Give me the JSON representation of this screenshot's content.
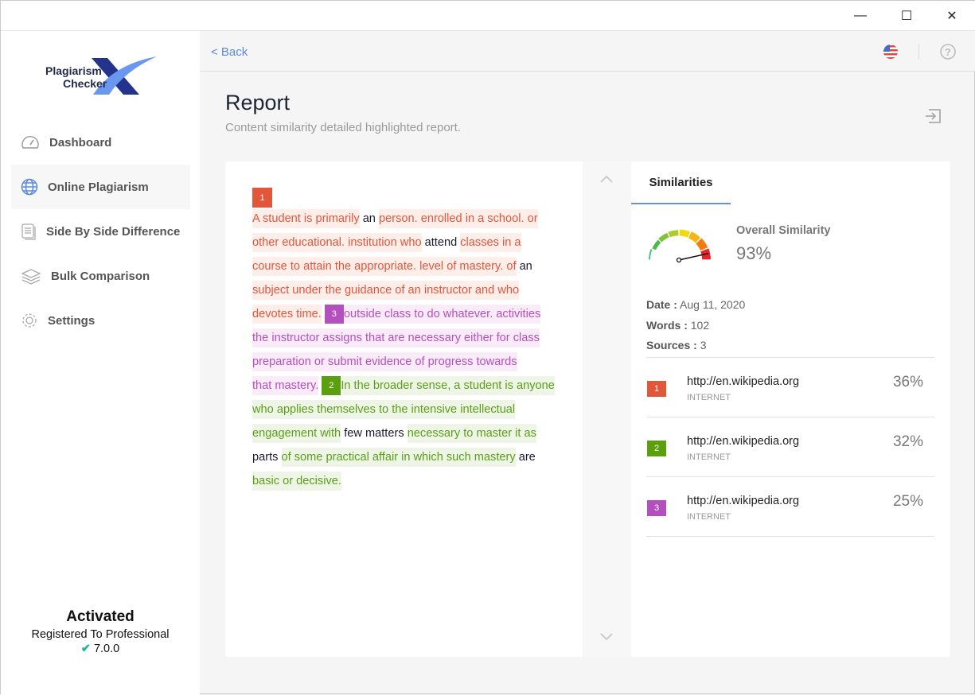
{
  "window": {
    "minimize": "—",
    "maximize": "☐",
    "close": "✕"
  },
  "logo": {
    "line1": "Plagiarism",
    "line2": "Checker"
  },
  "sidebar": {
    "items": [
      {
        "label": "Dashboard",
        "icon": "gauge-icon"
      },
      {
        "label": "Online Plagiarism",
        "icon": "globe-icon",
        "active": true
      },
      {
        "label": "Side By Side Difference",
        "icon": "document-icon"
      },
      {
        "label": "Bulk Comparison",
        "icon": "layers-icon"
      },
      {
        "label": "Settings",
        "icon": "gear-icon"
      }
    ]
  },
  "activation": {
    "status": "Activated",
    "registered": "Registered To Professional",
    "version": "7.0.0"
  },
  "header": {
    "back": "< Back"
  },
  "page": {
    "title": "Report",
    "subtitle": "Content similarity detailed highlighted report."
  },
  "colors": {
    "1": "#e2563a",
    "2": "#5b9e0e",
    "3": "#b44fbe"
  },
  "text": {
    "badges": {
      "first": "1",
      "second": "3",
      "third": "2"
    },
    "lines": [
      [
        [
          "1",
          "A student is primarily"
        ],
        [
          "n",
          " an "
        ],
        [
          "1",
          "person. enrolled in a school. or"
        ]
      ],
      [
        [
          "1",
          "other educational. institution who"
        ],
        [
          "n",
          " attend "
        ],
        [
          "1",
          "classes in a"
        ]
      ],
      [
        [
          "1",
          "course to attain the appropriate. level of mastery. of"
        ],
        [
          "n",
          " an"
        ]
      ],
      [
        [
          "1",
          "subject under the guidance of an instructor and who"
        ]
      ],
      [
        [
          "1",
          "devotes time."
        ],
        [
          "n",
          " "
        ],
        [
          "3",
          "outside class to do whatever. activities"
        ]
      ],
      [
        [
          "3",
          "the instructor assigns that are necessary either for class"
        ]
      ],
      [
        [
          "3",
          "preparation or submit evidence of progress towards"
        ]
      ],
      [
        [
          "3",
          "that mastery."
        ],
        [
          "n",
          " "
        ],
        [
          "2",
          "In the broader sense, a student is anyone"
        ]
      ],
      [
        [
          "2",
          "who applies themselves to the intensive intellectual"
        ]
      ],
      [
        [
          "2",
          "engagement with"
        ],
        [
          "n",
          " few matters "
        ],
        [
          "2",
          "necessary to master it as"
        ]
      ],
      [
        [
          "n",
          "parts "
        ],
        [
          "2",
          "of some practical affair in which such mastery"
        ],
        [
          "n",
          " are"
        ]
      ],
      [
        [
          "2",
          "basic or decisive."
        ]
      ]
    ]
  },
  "similarities": {
    "tab": "Similarities",
    "overall_label": "Overall Similarity",
    "overall_value": "93%",
    "gauge_percent": 93,
    "date_label": "Date :",
    "date": "Aug 11, 2020",
    "words_label": "Words :",
    "words": "102",
    "sources_label": "Sources :",
    "sources": "3",
    "items": [
      {
        "num": "1",
        "url": "http://en.wikipedia.org",
        "type": "INTERNET",
        "percent": "36%"
      },
      {
        "num": "2",
        "url": "http://en.wikipedia.org",
        "type": "INTERNET",
        "percent": "32%"
      },
      {
        "num": "3",
        "url": "http://en.wikipedia.org",
        "type": "INTERNET",
        "percent": "25%"
      }
    ]
  }
}
